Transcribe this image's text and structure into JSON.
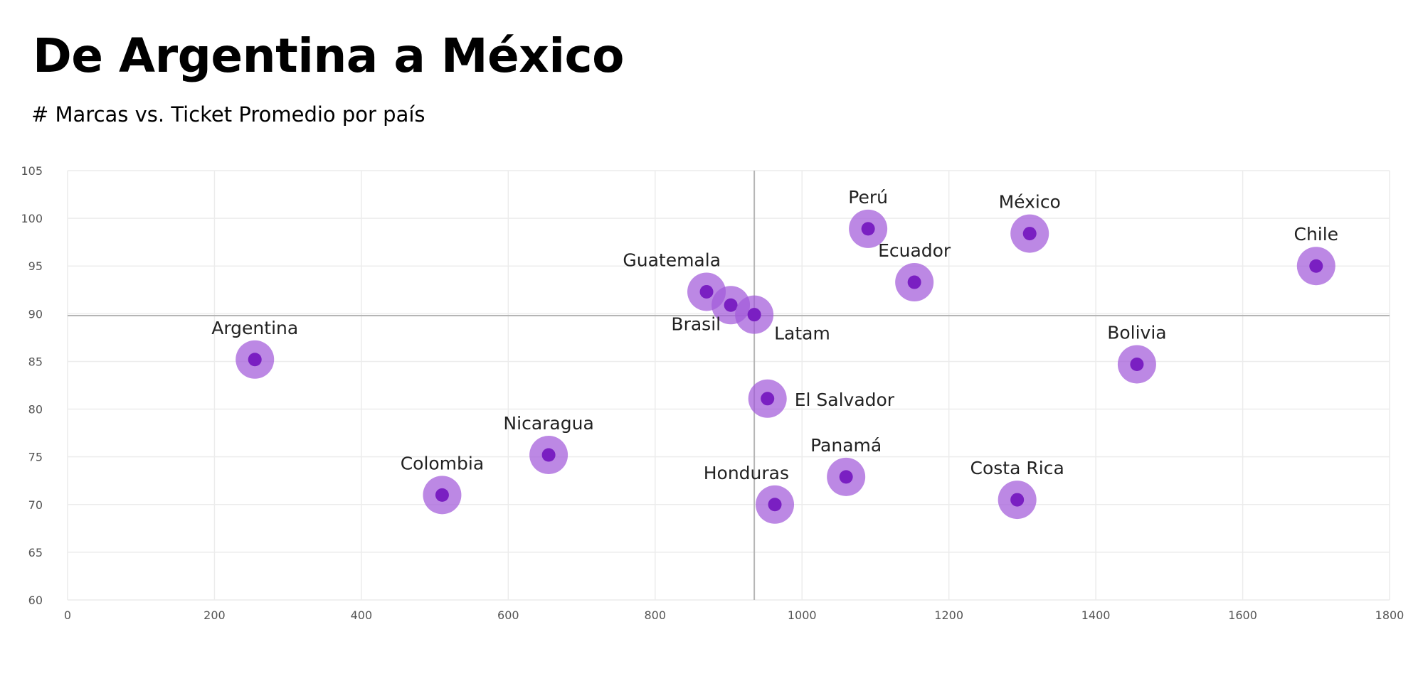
{
  "header": {
    "title": "De Argentina a México",
    "subtitle": "# Marcas vs. Ticket Promedio por país"
  },
  "colors": {
    "halo": "#a25ad9",
    "dot": "#7a1fc2",
    "grid": "#ececec",
    "reference_line": "#b5b5b5"
  },
  "chart_data": {
    "type": "scatter",
    "title": "De Argentina a México",
    "subtitle": "# Marcas vs. Ticket Promedio por país",
    "xlim": [
      0,
      1800
    ],
    "ylim": [
      60,
      105
    ],
    "x_ticks": [
      0,
      200,
      400,
      600,
      800,
      1000,
      1200,
      1400,
      1600,
      1800
    ],
    "y_ticks": [
      60,
      65,
      70,
      75,
      80,
      85,
      90,
      95,
      100,
      105
    ],
    "grid": true,
    "reference_lines": {
      "x": 935,
      "y": 89.8
    },
    "points": [
      {
        "label": "Argentina",
        "x": 255,
        "y": 85.2,
        "label_pos": "above"
      },
      {
        "label": "Colombia",
        "x": 510,
        "y": 71.0,
        "label_pos": "above"
      },
      {
        "label": "Nicaragua",
        "x": 655,
        "y": 75.2,
        "label_pos": "above"
      },
      {
        "label": "Guatemala",
        "x": 870,
        "y": 92.3,
        "label_pos": "above-left"
      },
      {
        "label": "Brasil",
        "x": 903,
        "y": 90.9,
        "label_pos": "below-left"
      },
      {
        "label": "Latam",
        "x": 935,
        "y": 89.9,
        "label_pos": "below-right"
      },
      {
        "label": "El Salvador",
        "x": 953,
        "y": 81.1,
        "label_pos": "right"
      },
      {
        "label": "Honduras",
        "x": 963,
        "y": 70.0,
        "label_pos": "above-left"
      },
      {
        "label": "Panamá",
        "x": 1060,
        "y": 72.9,
        "label_pos": "above"
      },
      {
        "label": "Perú",
        "x": 1090,
        "y": 98.9,
        "label_pos": "above"
      },
      {
        "label": "Ecuador",
        "x": 1153,
        "y": 93.3,
        "label_pos": "above"
      },
      {
        "label": "México",
        "x": 1310,
        "y": 98.4,
        "label_pos": "above"
      },
      {
        "label": "Costa Rica",
        "x": 1293,
        "y": 70.5,
        "label_pos": "above"
      },
      {
        "label": "Bolivia",
        "x": 1456,
        "y": 84.7,
        "label_pos": "above"
      },
      {
        "label": "Chile",
        "x": 1700,
        "y": 95.0,
        "label_pos": "above"
      }
    ]
  }
}
